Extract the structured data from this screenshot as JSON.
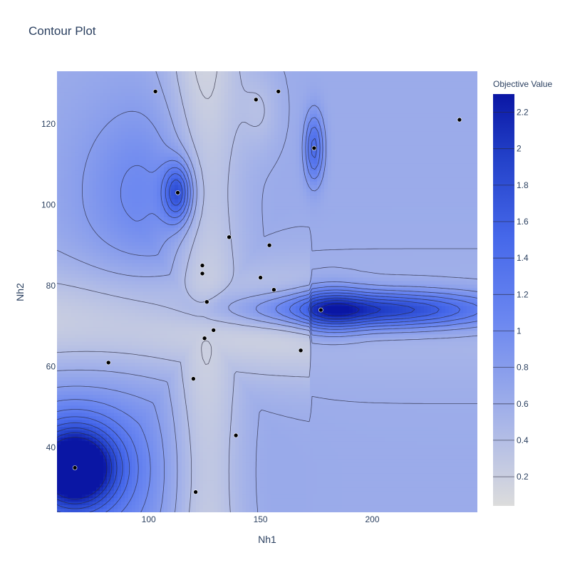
{
  "chart_data": {
    "type": "contour",
    "title": "Contour Plot",
    "xlabel": "Nh1",
    "ylabel": "Nh2",
    "xlim": [
      59,
      247
    ],
    "ylim": [
      24,
      133
    ],
    "xticks": [
      100,
      150,
      200
    ],
    "yticks": [
      40,
      60,
      80,
      100,
      120
    ],
    "colorbar": {
      "title": "Objective Value",
      "range": [
        0.04,
        2.3
      ],
      "ticks": [
        0.2,
        0.4,
        0.6,
        0.8,
        1,
        1.2,
        1.4,
        1.6,
        1.8,
        2,
        2.2
      ],
      "colorscale": [
        [
          0.0,
          "#dcdcdc"
        ],
        [
          0.2,
          "#a9b6e8"
        ],
        [
          0.45,
          "#6b87f0"
        ],
        [
          0.65,
          "#4668ea"
        ],
        [
          0.85,
          "#2240c8"
        ],
        [
          1.0,
          "#0a16a4"
        ]
      ]
    },
    "points": [
      {
        "x": 67,
        "y": 35
      },
      {
        "x": 82,
        "y": 61
      },
      {
        "x": 103,
        "y": 128
      },
      {
        "x": 113,
        "y": 103
      },
      {
        "x": 120,
        "y": 57
      },
      {
        "x": 121,
        "y": 29
      },
      {
        "x": 124,
        "y": 85
      },
      {
        "x": 124,
        "y": 83
      },
      {
        "x": 125,
        "y": 67
      },
      {
        "x": 126,
        "y": 76
      },
      {
        "x": 129,
        "y": 69
      },
      {
        "x": 136,
        "y": 92
      },
      {
        "x": 139,
        "y": 43
      },
      {
        "x": 148,
        "y": 126
      },
      {
        "x": 150,
        "y": 82
      },
      {
        "x": 154,
        "y": 90
      },
      {
        "x": 156,
        "y": 79
      },
      {
        "x": 158,
        "y": 128
      },
      {
        "x": 168,
        "y": 64
      },
      {
        "x": 174,
        "y": 114
      },
      {
        "x": 177,
        "y": 74
      },
      {
        "x": 239,
        "y": 121
      }
    ],
    "features": [
      {
        "x": 67,
        "y": 35,
        "amp": 1.95,
        "sx": 13,
        "sy": 7
      },
      {
        "x": 68,
        "y": 34,
        "amp": 0.55,
        "sx": 38,
        "sy": 20
      },
      {
        "x": 113,
        "y": 103,
        "amp": 1.1,
        "sx": 4.5,
        "sy": 5
      },
      {
        "x": 100,
        "y": 103,
        "amp": 0.45,
        "sx": 22,
        "sy": 16
      },
      {
        "x": 174,
        "y": 114,
        "amp": 0.85,
        "sx": 3,
        "sy": 6
      },
      {
        "x": 200,
        "y": 74,
        "amp": 1.45,
        "sx": 40,
        "sy": 3.2
      },
      {
        "x": 182,
        "y": 74,
        "amp": 0.55,
        "sx": 10,
        "sy": 4
      }
    ]
  }
}
